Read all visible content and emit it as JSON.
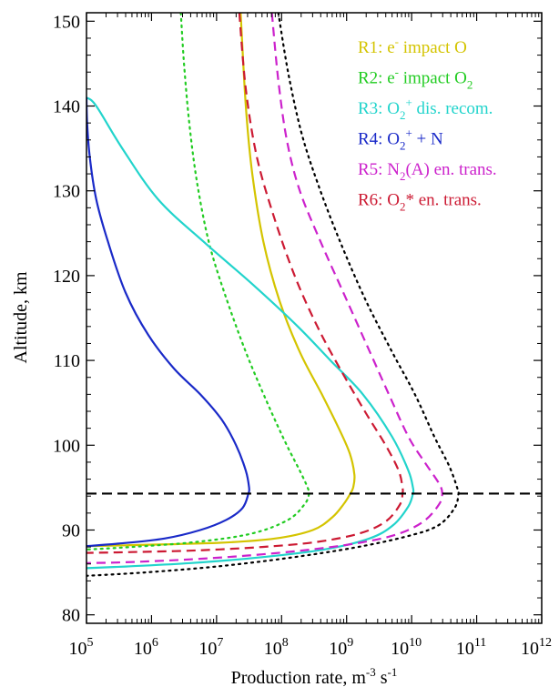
{
  "chart_data": {
    "type": "line",
    "xlabel_main": "Production rate, m",
    "xlabel_exp1": "-3",
    "xlabel_mid": " s",
    "xlabel_exp2": "-1",
    "ylabel": "Altitude, km",
    "x_scale": "log",
    "xlim_log10": [
      5,
      12
    ],
    "ylim": [
      79,
      151
    ],
    "x_tick_base": "10",
    "x_tick_exponents": [
      "5",
      "6",
      "7",
      "8",
      "9",
      "10",
      "11",
      "12"
    ],
    "y_ticks": [
      "80",
      "90",
      "100",
      "110",
      "120",
      "130",
      "140",
      "150"
    ],
    "y_tick_values": [
      80,
      90,
      100,
      110,
      120,
      130,
      140,
      150
    ],
    "reference_line": {
      "altitude": 94.3,
      "style": "dashed",
      "color": "#000000"
    },
    "legend_position": "top-right",
    "series": [
      {
        "id": "R1",
        "legend": [
          {
            "t": "R1: e",
            "s": null
          },
          {
            "t": "-",
            "s": "sup"
          },
          {
            "t": " impact O",
            "s": null
          }
        ],
        "color": "#d4c400",
        "dash": "solid",
        "points": [
          [
            7.37,
            151
          ],
          [
            7.45,
            140
          ],
          [
            7.55,
            132
          ],
          [
            7.72,
            124
          ],
          [
            7.97,
            117
          ],
          [
            8.28,
            111
          ],
          [
            8.62,
            106
          ],
          [
            8.88,
            102
          ],
          [
            9.05,
            99
          ],
          [
            9.12,
            96.5
          ],
          [
            9.1,
            95
          ],
          [
            9.05,
            94.2
          ],
          [
            8.95,
            93
          ],
          [
            8.78,
            91.5
          ],
          [
            8.48,
            90
          ],
          [
            7.9,
            89
          ],
          [
            7.05,
            88.5
          ],
          [
            5.6,
            88.2
          ],
          [
            5,
            88.1
          ]
        ]
      },
      {
        "id": "R2",
        "legend": [
          {
            "t": "R2: e",
            "s": null
          },
          {
            "t": "-",
            "s": "sup"
          },
          {
            "t": " impact O",
            "s": null
          },
          {
            "t": "2",
            "s": "sub"
          }
        ],
        "color": "#22cc22",
        "dash": "dotted",
        "points": [
          [
            6.45,
            151
          ],
          [
            6.5,
            145
          ],
          [
            6.58,
            138
          ],
          [
            6.7,
            131
          ],
          [
            6.88,
            124
          ],
          [
            7.12,
            118
          ],
          [
            7.45,
            111
          ],
          [
            7.78,
            105
          ],
          [
            8.08,
            100
          ],
          [
            8.28,
            97
          ],
          [
            8.4,
            95
          ],
          [
            8.42,
            94.2
          ],
          [
            8.35,
            93
          ],
          [
            8.1,
            91.2
          ],
          [
            7.55,
            89.6
          ],
          [
            6.7,
            88.6
          ],
          [
            5.7,
            88
          ],
          [
            5,
            87.7
          ]
        ]
      },
      {
        "id": "R3",
        "legend": [
          {
            "t": "R3: O",
            "s": null
          },
          {
            "t": "2",
            "s": "sub"
          },
          {
            "t": "+",
            "s": "sup"
          },
          {
            "t": " dis. recom.",
            "s": null
          }
        ],
        "color": "#22d4cc",
        "dash": "solid",
        "points": [
          [
            5,
            141
          ],
          [
            5.15,
            140
          ],
          [
            5.55,
            135
          ],
          [
            6.1,
            129
          ],
          [
            6.8,
            124
          ],
          [
            7.55,
            119
          ],
          [
            8.25,
            114
          ],
          [
            8.75,
            110
          ],
          [
            9.25,
            106
          ],
          [
            9.7,
            101
          ],
          [
            9.95,
            97
          ],
          [
            10.02,
            95
          ],
          [
            10.02,
            94.3
          ],
          [
            9.95,
            92.8
          ],
          [
            9.72,
            90.6
          ],
          [
            9.35,
            89
          ],
          [
            8.65,
            87.7
          ],
          [
            7.7,
            86.8
          ],
          [
            6.6,
            86.1
          ],
          [
            5.6,
            85.7
          ],
          [
            5,
            85.5
          ]
        ]
      },
      {
        "id": "R4",
        "legend": [
          {
            "t": "R4: O",
            "s": null
          },
          {
            "t": "2",
            "s": "sub"
          },
          {
            "t": "+",
            "s": "sup"
          },
          {
            "t": " + N",
            "s": null
          }
        ],
        "color": "#1a2ac8",
        "dash": "solid",
        "points": [
          [
            5,
            141
          ],
          [
            5.01,
            138
          ],
          [
            5.05,
            134
          ],
          [
            5.15,
            129
          ],
          [
            5.33,
            124
          ],
          [
            5.6,
            118
          ],
          [
            5.95,
            113
          ],
          [
            6.35,
            109
          ],
          [
            6.75,
            106
          ],
          [
            7.08,
            103
          ],
          [
            7.3,
            100
          ],
          [
            7.45,
            97
          ],
          [
            7.5,
            95
          ],
          [
            7.49,
            94.3
          ],
          [
            7.4,
            92.6
          ],
          [
            7.15,
            91.2
          ],
          [
            6.75,
            90
          ],
          [
            6.2,
            89
          ],
          [
            5.5,
            88.4
          ],
          [
            5,
            88.1
          ]
        ]
      },
      {
        "id": "R5",
        "legend": [
          {
            "t": "R5: N",
            "s": null
          },
          {
            "t": "2",
            "s": "sub"
          },
          {
            "t": "(A) en. trans.",
            "s": null
          }
        ],
        "color": "#cc22cc",
        "dash": "dashed",
        "points": [
          [
            7.85,
            151
          ],
          [
            7.95,
            143
          ],
          [
            8.08,
            136
          ],
          [
            8.28,
            130
          ],
          [
            8.6,
            124
          ],
          [
            8.95,
            118
          ],
          [
            9.3,
            112
          ],
          [
            9.65,
            106
          ],
          [
            9.95,
            101
          ],
          [
            10.2,
            98
          ],
          [
            10.42,
            95.5
          ],
          [
            10.47,
            94.3
          ],
          [
            10.42,
            93
          ],
          [
            10.18,
            91
          ],
          [
            9.78,
            89.5
          ],
          [
            9.2,
            88.5
          ],
          [
            8.45,
            87.7
          ],
          [
            7.5,
            87
          ],
          [
            6.5,
            86.5
          ],
          [
            5.6,
            86.2
          ],
          [
            5,
            86.1
          ]
        ]
      },
      {
        "id": "R6",
        "legend": [
          {
            "t": "R6: O",
            "s": null
          },
          {
            "t": "2",
            "s": "sub"
          },
          {
            "t": "* en. trans.",
            "s": null
          }
        ],
        "color": "#cc1a33",
        "dash": "dashed",
        "points": [
          [
            7.35,
            151
          ],
          [
            7.45,
            142
          ],
          [
            7.62,
            134
          ],
          [
            7.88,
            127
          ],
          [
            8.2,
            120
          ],
          [
            8.55,
            114
          ],
          [
            8.9,
            109
          ],
          [
            9.28,
            104
          ],
          [
            9.6,
            100
          ],
          [
            9.8,
            97
          ],
          [
            9.86,
            95
          ],
          [
            9.86,
            94.3
          ],
          [
            9.82,
            93
          ],
          [
            9.6,
            91
          ],
          [
            9.2,
            89.6
          ],
          [
            8.55,
            88.6
          ],
          [
            7.7,
            88
          ],
          [
            6.7,
            87.6
          ],
          [
            5.7,
            87.4
          ],
          [
            5,
            87.3
          ]
        ]
      },
      {
        "id": "total",
        "legend": null,
        "color": "#000000",
        "dash": "dotted",
        "points": [
          [
            7.95,
            151
          ],
          [
            8.1,
            144
          ],
          [
            8.3,
            137
          ],
          [
            8.55,
            131
          ],
          [
            8.9,
            124
          ],
          [
            9.3,
            117
          ],
          [
            9.7,
            111
          ],
          [
            10.05,
            106
          ],
          [
            10.35,
            101
          ],
          [
            10.58,
            97.5
          ],
          [
            10.7,
            95
          ],
          [
            10.72,
            94.3
          ],
          [
            10.66,
            92.6
          ],
          [
            10.4,
            90.5
          ],
          [
            9.9,
            89.2
          ],
          [
            9.1,
            87.9
          ],
          [
            8.1,
            86.7
          ],
          [
            7.0,
            85.7
          ],
          [
            5.9,
            85
          ],
          [
            5,
            84.6
          ]
        ]
      }
    ]
  }
}
